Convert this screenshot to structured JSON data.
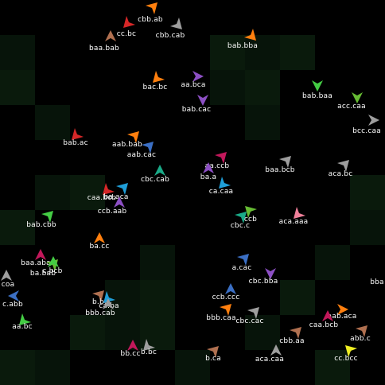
{
  "background_color": "#000000",
  "tile_color": "#07140a",
  "tile_color_alt": "#0a1a0c",
  "agents": [
    {
      "name": "cbb.ab",
      "color": "#ff7f0e",
      "shape": "arrow-up-right"
    },
    {
      "name": "cc.bc",
      "color": "#d62728",
      "shape": "arrow-down-left"
    },
    {
      "name": "cbb.cab",
      "color": "#9e9e9e",
      "shape": "arrow-down-right"
    },
    {
      "name": "baa.bab",
      "color": "#b07050",
      "shape": "arrow-up"
    },
    {
      "name": "bab.bba",
      "color": "#ff7f0e",
      "shape": "arrow-down-right"
    },
    {
      "name": "aa.bca",
      "color": "#8c4fc4",
      "shape": "arrow-right"
    },
    {
      "name": "bac.bc",
      "color": "#ff7f0e",
      "shape": "arrow-down-left"
    },
    {
      "name": "bab.cac",
      "color": "#8c4fc4",
      "shape": "arrow-down"
    },
    {
      "name": "bab.baa",
      "color": "#44cc44",
      "shape": "arrow-down"
    },
    {
      "name": "acc.caa",
      "color": "#66bb33",
      "shape": "arrow-down"
    },
    {
      "name": "bcc.caa",
      "color": "#9e9e9e",
      "shape": "arrow-right"
    },
    {
      "name": "bab.ac",
      "color": "#d62728",
      "shape": "arrow-down-left"
    },
    {
      "name": "aab.bab",
      "color": "#ff7f0e",
      "shape": "arrow-up-right"
    },
    {
      "name": "aab.cac",
      "color": "#3b6fc4",
      "shape": "arrow-up-right"
    },
    {
      "name": "aa.ccb",
      "color": "#c2185b",
      "shape": "arrow-up-right"
    },
    {
      "name": "baa.bcb",
      "color": "#9e9e9e",
      "shape": "arrow-up-right"
    },
    {
      "name": "aca.bc",
      "color": "#9e9e9e",
      "shape": "arrow-up-right"
    },
    {
      "name": "ba.a",
      "color": "#8c4fc4",
      "shape": "arrow-up"
    },
    {
      "name": "cbc.cab",
      "color": "#1aaa88",
      "shape": "arrow-up"
    },
    {
      "name": "ca.caa",
      "color": "#1f9ed8",
      "shape": "arrow-down-left"
    },
    {
      "name": "caa.bcb",
      "color": "#d62728",
      "shape": "arrow-down-left"
    },
    {
      "name": "ba.aca",
      "color": "#1f9ed8",
      "shape": "arrow-up-right"
    },
    {
      "name": "ccb.aab",
      "color": "#8c4fc4",
      "shape": "arrow-up"
    },
    {
      "name": "ccb",
      "color": "#66bb33",
      "shape": "arrow-up-left"
    },
    {
      "name": "cbc.c",
      "color": "#1aaa88",
      "shape": "arrow-up-right"
    },
    {
      "name": "aca.aaa",
      "color": "#f0809a",
      "shape": "arrow-down-left"
    },
    {
      "name": "bab.cbb",
      "color": "#44cc44",
      "shape": "arrow-up-right"
    },
    {
      "name": "ba.cc",
      "color": "#ff7f0e",
      "shape": "arrow-up"
    },
    {
      "name": "baa.aba",
      "color": "#c2185b",
      "shape": "arrow-up"
    },
    {
      "name": "ba.bab",
      "color": "#66bb33",
      "shape": "arrow-up-right"
    },
    {
      "name": "c.bcb",
      "color": "#44cc44",
      "shape": "arrow-up"
    },
    {
      "name": "a.cac",
      "color": "#3b6fc4",
      "shape": "arrow-up-right"
    },
    {
      "name": "cbc.bba",
      "color": "#8c4fc4",
      "shape": "arrow-down"
    },
    {
      "name": "coa",
      "color": "#9e9e9e",
      "shape": "arrow-up"
    },
    {
      "name": "bba",
      "color": "#000000",
      "shape": "none"
    },
    {
      "name": "ccb.ccc",
      "color": "#3b6fc4",
      "shape": "arrow-up"
    },
    {
      "name": "c.abb",
      "color": "#3b6fc4",
      "shape": "arrow-left"
    },
    {
      "name": "b.bc",
      "color": "#b07050",
      "shape": "arrow-up-right"
    },
    {
      "name": "ca.ba",
      "color": "#1f9ed8",
      "shape": "arrow-down-left"
    },
    {
      "name": "bbb.cab",
      "color": "#9e9e9e",
      "shape": "arrow-up"
    },
    {
      "name": "bbb.caa",
      "color": "#ff7f0e",
      "shape": "arrow-up-right"
    },
    {
      "name": "cbc.cac",
      "color": "#9e9e9e",
      "shape": "arrow-up-right"
    },
    {
      "name": "aab.aca",
      "color": "#ff7f0e",
      "shape": "arrow-right"
    },
    {
      "name": "caa.bcb",
      "color": "#c2185b",
      "shape": "arrow-up"
    },
    {
      "name": "aa.bc",
      "color": "#44cc44",
      "shape": "arrow-down-left"
    },
    {
      "name": "cbb.aa",
      "color": "#b07050",
      "shape": "arrow-up-right"
    },
    {
      "name": "abb.c",
      "color": "#b07050",
      "shape": "arrow-up-right"
    },
    {
      "name": "bb.cc",
      "color": "#c2185b",
      "shape": "arrow-up"
    },
    {
      "name": "b.bc",
      "color": "#9e9e9e",
      "shape": "arrow-down-left"
    },
    {
      "name": "b.ca",
      "color": "#b07050",
      "shape": "arrow-up-right"
    },
    {
      "name": "aca.caa",
      "color": "#9e9e9e",
      "shape": "arrow-up"
    },
    {
      "name": "cc.bcc",
      "color": "#eeee22",
      "shape": "arrow-up-left"
    }
  ]
}
